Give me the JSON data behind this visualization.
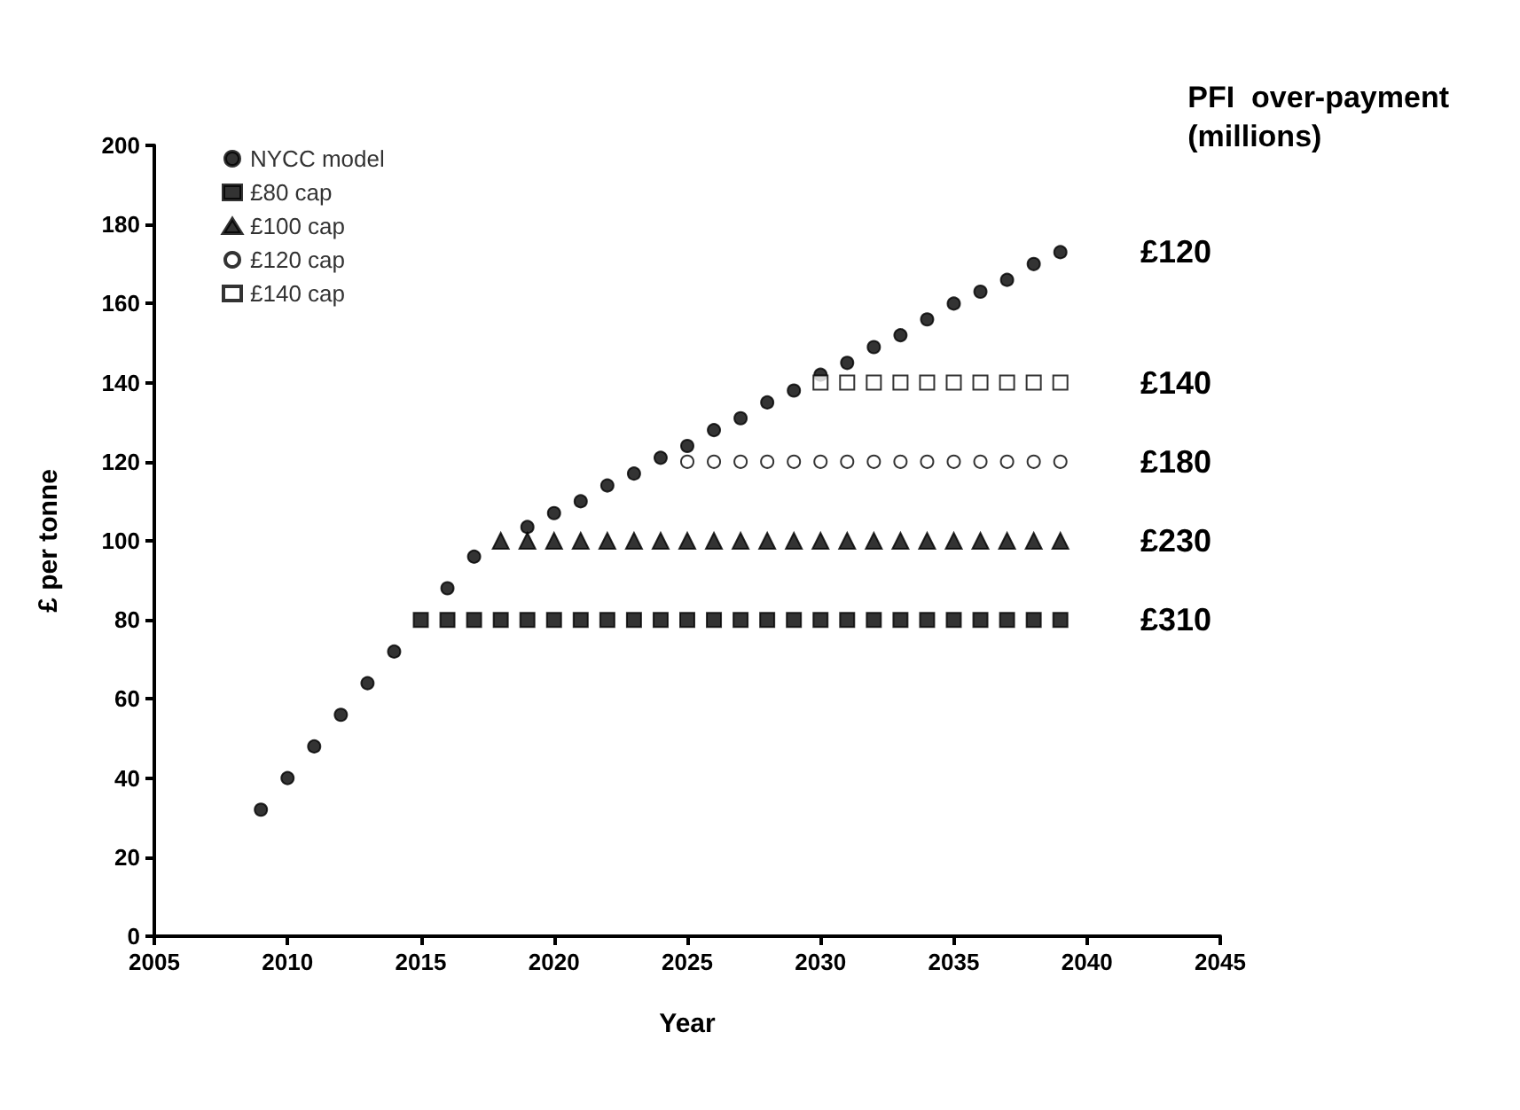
{
  "chart_data": {
    "type": "scatter",
    "xlabel": "Year",
    "ylabel": "£ per tonne",
    "x": [
      2009,
      2010,
      2011,
      2012,
      2013,
      2014,
      2015,
      2016,
      2017,
      2018,
      2019,
      2020,
      2021,
      2022,
      2023,
      2024,
      2025,
      2026,
      2027,
      2028,
      2029,
      2030,
      2031,
      2032,
      2033,
      2034,
      2035,
      2036,
      2037,
      2038,
      2039
    ],
    "series": [
      {
        "name": "NYCC model",
        "color": "#000000",
        "marker": "circle",
        "values": [
          32,
          40,
          48,
          56,
          64,
          72,
          null,
          88,
          96,
          null,
          103.5,
          107,
          110,
          114,
          117,
          121,
          124,
          128,
          131,
          135,
          138,
          142,
          145,
          149,
          152,
          156,
          160,
          163,
          166,
          170,
          173
        ]
      },
      {
        "name": "£80 cap",
        "color": "#000000",
        "marker": "square",
        "values": [
          null,
          null,
          null,
          null,
          null,
          null,
          80,
          80,
          80,
          80,
          80,
          80,
          80,
          80,
          80,
          80,
          80,
          80,
          80,
          80,
          80,
          80,
          80,
          80,
          80,
          80,
          80,
          80,
          80,
          80,
          80
        ]
      },
      {
        "name": "£100 cap",
        "color": "#000000",
        "marker": "triangle",
        "values": [
          null,
          null,
          null,
          null,
          null,
          null,
          null,
          null,
          null,
          100,
          100,
          100,
          100,
          100,
          100,
          100,
          100,
          100,
          100,
          100,
          100,
          100,
          100,
          100,
          100,
          100,
          100,
          100,
          100,
          100,
          100
        ]
      },
      {
        "name": "£120 cap",
        "color": "#ffffff",
        "marker": "circle",
        "values": [
          null,
          null,
          null,
          null,
          null,
          null,
          null,
          null,
          null,
          null,
          null,
          null,
          null,
          null,
          null,
          null,
          120,
          120,
          120,
          120,
          120,
          120,
          120,
          120,
          120,
          120,
          120,
          120,
          120,
          120,
          120
        ]
      },
      {
        "name": "£140 cap",
        "color": "#ffffff",
        "marker": "square",
        "values": [
          null,
          null,
          null,
          null,
          null,
          null,
          null,
          null,
          null,
          null,
          null,
          null,
          null,
          null,
          null,
          null,
          null,
          null,
          null,
          null,
          null,
          140,
          140,
          140,
          140,
          140,
          140,
          140,
          140,
          140,
          140
        ]
      }
    ],
    "xlim": [
      2005,
      2045
    ],
    "xticks": [
      2005,
      2010,
      2015,
      2020,
      2025,
      2030,
      2035,
      2040,
      2045
    ],
    "ylim": [
      0,
      200
    ],
    "yticks": [
      0,
      20,
      40,
      60,
      80,
      100,
      120,
      140,
      160,
      180,
      200
    ],
    "grid": false,
    "legend": "top left",
    "annotations": [
      "PFI  over-payment\n(millions)",
      "£120",
      "£140",
      "£180",
      "£230",
      "£310"
    ]
  }
}
